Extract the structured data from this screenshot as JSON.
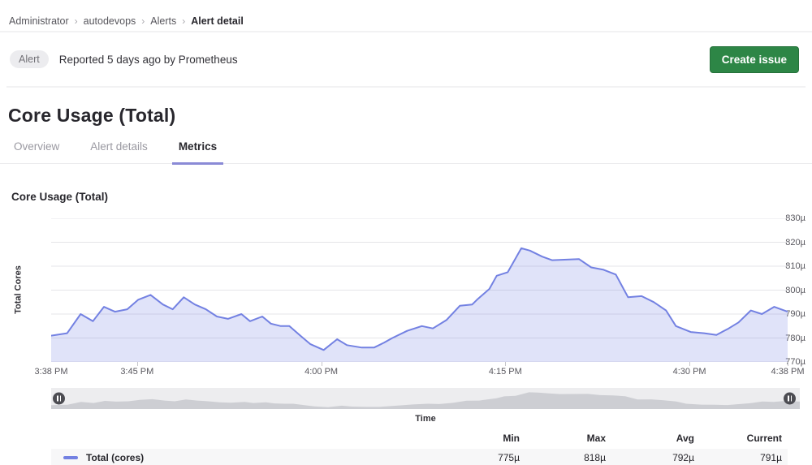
{
  "breadcrumb": {
    "separator": "›",
    "items": [
      "Administrator",
      "autodevops",
      "Alerts"
    ],
    "current": "Alert detail"
  },
  "alert_bar": {
    "badge": "Alert",
    "reported_text": "Reported 5 days ago by Prometheus",
    "create_issue_label": "Create issue"
  },
  "page": {
    "title": "Core Usage (Total)"
  },
  "tabs": [
    {
      "label": "Overview",
      "active": false
    },
    {
      "label": "Alert details",
      "active": false
    },
    {
      "label": "Metrics",
      "active": true
    }
  ],
  "chart_data": {
    "type": "area",
    "title": "Core Usage (Total)",
    "xlabel": "Time",
    "ylabel": "Total Cores",
    "ylim": [
      770,
      830
    ],
    "y_tick_step": 10,
    "y_tick_suffix": "µ",
    "xlim_minutes": [
      0,
      60
    ],
    "grid": true,
    "x_ticks": [
      {
        "label": "3:38 PM",
        "t": 0
      },
      {
        "label": "3:45 PM",
        "t": 7
      },
      {
        "label": "4:00 PM",
        "t": 22
      },
      {
        "label": "4:15 PM",
        "t": 37
      },
      {
        "label": "4:30 PM",
        "t": 52
      },
      {
        "label": "4:38 PM",
        "t": 60
      }
    ],
    "series": [
      {
        "name": "Total (cores)",
        "unit": "µ",
        "points": [
          [
            0,
            781
          ],
          [
            1.3,
            782
          ],
          [
            2.4,
            790
          ],
          [
            3.4,
            787
          ],
          [
            4.3,
            793
          ],
          [
            5.2,
            791
          ],
          [
            6.2,
            792
          ],
          [
            7.1,
            796
          ],
          [
            8.1,
            798
          ],
          [
            9.1,
            794
          ],
          [
            9.9,
            792
          ],
          [
            10.8,
            797
          ],
          [
            11.7,
            794
          ],
          [
            12.6,
            792
          ],
          [
            13.5,
            789
          ],
          [
            14.4,
            788
          ],
          [
            15.5,
            790
          ],
          [
            16.2,
            787
          ],
          [
            17.2,
            789
          ],
          [
            17.9,
            786
          ],
          [
            18.7,
            785
          ],
          [
            19.4,
            785
          ],
          [
            20.3,
            781
          ],
          [
            21.1,
            777.5
          ],
          [
            22.2,
            775
          ],
          [
            23.3,
            779.5
          ],
          [
            24.1,
            777
          ],
          [
            25.3,
            776
          ],
          [
            26.3,
            776
          ],
          [
            27.1,
            778
          ],
          [
            27.8,
            780
          ],
          [
            29,
            783
          ],
          [
            30.2,
            785
          ],
          [
            31.1,
            784
          ],
          [
            32.2,
            787.5
          ],
          [
            33.3,
            793.5
          ],
          [
            34.3,
            794
          ],
          [
            34.7,
            796
          ],
          [
            35.7,
            800.5
          ],
          [
            36.3,
            806
          ],
          [
            37.2,
            807.5
          ],
          [
            38.3,
            817.5
          ],
          [
            39,
            816.5
          ],
          [
            40,
            814
          ],
          [
            40.8,
            812.5
          ],
          [
            41.8,
            812.7
          ],
          [
            43,
            813
          ],
          [
            44,
            809.5
          ],
          [
            45,
            808.5
          ],
          [
            46,
            806.5
          ],
          [
            47,
            797
          ],
          [
            48.1,
            797.5
          ],
          [
            49.1,
            795
          ],
          [
            50.1,
            791.5
          ],
          [
            50.9,
            785
          ],
          [
            52.1,
            782.5
          ],
          [
            53.2,
            782
          ],
          [
            54.2,
            781.3
          ],
          [
            55.2,
            784
          ],
          [
            56,
            786.5
          ],
          [
            57,
            791.5
          ],
          [
            57.9,
            790
          ],
          [
            58.9,
            793
          ],
          [
            60,
            791
          ]
        ]
      }
    ],
    "stats": {
      "columns": [
        "Min",
        "Max",
        "Avg",
        "Current"
      ],
      "rows": [
        {
          "name": "Total (cores)",
          "values": [
            "775µ",
            "818µ",
            "792µ",
            "791µ"
          ]
        }
      ]
    },
    "legend_position": "bottom"
  },
  "colors": {
    "accent_line": "#7381e2",
    "area_fill": "rgba(115,129,226,0.22)",
    "gridline": "#e5e5e8",
    "tab_indicator": "#8a8ad6",
    "button_green": "#2d8646",
    "badge_bg": "#ececef",
    "minimap_fill": "#cdced3"
  }
}
